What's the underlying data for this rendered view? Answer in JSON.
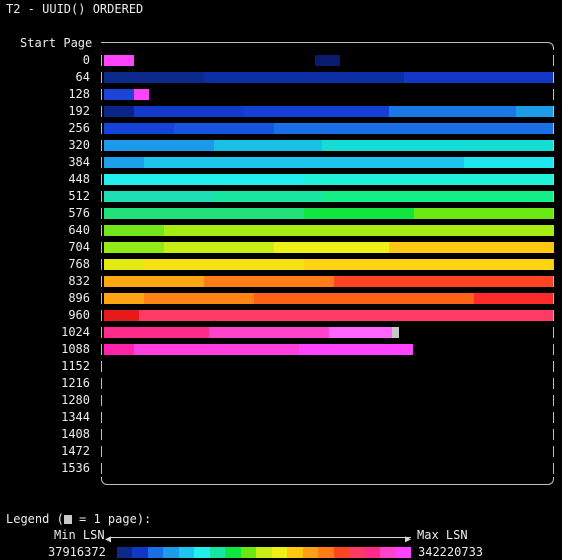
{
  "title": "T2 - UUID() ORDERED",
  "axis_label": "Start Page",
  "rows": [
    {
      "label": "0",
      "cells": [
        [
          "#ff44ff",
          0,
          30
        ],
        [
          "#0a1b6e",
          211,
          236
        ]
      ]
    },
    {
      "label": "64",
      "cells": [
        [
          "#0b2a8c",
          0,
          100
        ],
        [
          "#0d2fa6",
          100,
          300
        ],
        [
          "#1237c7",
          300,
          449
        ]
      ]
    },
    {
      "label": "128",
      "cells": [
        [
          "#1c44d6",
          0,
          30
        ],
        [
          "#ff44ff",
          30,
          45
        ]
      ]
    },
    {
      "label": "192",
      "cells": [
        [
          "#0b2488",
          0,
          30
        ],
        [
          "#123bcb",
          30,
          140
        ],
        [
          "#1540d8",
          140,
          285
        ],
        [
          "#1a78e6",
          285,
          412
        ],
        [
          "#1d9de8",
          412,
          449
        ]
      ]
    },
    {
      "label": "256",
      "cells": [
        [
          "#1343d8",
          0,
          70
        ],
        [
          "#1654e0",
          70,
          170
        ],
        [
          "#1b6fe6",
          170,
          449
        ]
      ]
    },
    {
      "label": "320",
      "cells": [
        [
          "#1a9ae8",
          0,
          110
        ],
        [
          "#18c0e6",
          110,
          218
        ],
        [
          "#14ddd4",
          218,
          449
        ]
      ]
    },
    {
      "label": "384",
      "cells": [
        [
          "#1da0ec",
          0,
          40
        ],
        [
          "#1ec6ee",
          40,
          360
        ],
        [
          "#1ee8ee",
          360,
          449
        ]
      ]
    },
    {
      "label": "448",
      "cells": [
        [
          "#21f0ec",
          0,
          200
        ],
        [
          "#20f2d8",
          200,
          449
        ]
      ]
    },
    {
      "label": "512",
      "cells": [
        [
          "#1cddb4",
          0,
          110
        ],
        [
          "#18e6a0",
          110,
          220
        ],
        [
          "#14ee86",
          220,
          449
        ]
      ]
    },
    {
      "label": "576",
      "cells": [
        [
          "#22e07a",
          0,
          200
        ],
        [
          "#11e640",
          200,
          310
        ],
        [
          "#6ae812",
          310,
          449
        ]
      ]
    },
    {
      "label": "640",
      "cells": [
        [
          "#72e61a",
          0,
          60
        ],
        [
          "#a6ee12",
          60,
          449
        ]
      ]
    },
    {
      "label": "704",
      "cells": [
        [
          "#94ea16",
          0,
          60
        ],
        [
          "#c6ee14",
          60,
          170
        ],
        [
          "#eef016",
          170,
          285
        ],
        [
          "#ffc812",
          285,
          449
        ]
      ]
    },
    {
      "label": "768",
      "cells": [
        [
          "#e2ea10",
          0,
          40
        ],
        [
          "#f6e210",
          40,
          200
        ],
        [
          "#ffd412",
          200,
          449
        ]
      ]
    },
    {
      "label": "832",
      "cells": [
        [
          "#ffa814",
          0,
          100
        ],
        [
          "#ff7c16",
          100,
          230
        ],
        [
          "#ff4424",
          230,
          449
        ]
      ]
    },
    {
      "label": "896",
      "cells": [
        [
          "#ffa414",
          0,
          40
        ],
        [
          "#ff8414",
          40,
          150
        ],
        [
          "#ff6216",
          150,
          370
        ],
        [
          "#ff2a2a",
          370,
          449
        ]
      ]
    },
    {
      "label": "960",
      "cells": [
        [
          "#e61a1a",
          0,
          35
        ],
        [
          "#ff3a64",
          35,
          449
        ]
      ]
    },
    {
      "label": "1024",
      "cells": [
        [
          "#ff2a8a",
          0,
          105
        ],
        [
          "#ff44cc",
          105,
          225
        ],
        [
          "#ff66ff",
          225,
          288
        ],
        [
          "#c8c8c8",
          288,
          295
        ]
      ]
    },
    {
      "label": "1088",
      "cells": [
        [
          "#ff22aa",
          0,
          30
        ],
        [
          "#ff3fe0",
          30,
          195
        ],
        [
          "#ff44ff",
          195,
          309
        ]
      ]
    },
    {
      "label": "1152",
      "cells": []
    },
    {
      "label": "1216",
      "cells": []
    },
    {
      "label": "1280",
      "cells": []
    },
    {
      "label": "1344",
      "cells": []
    },
    {
      "label": "1408",
      "cells": []
    },
    {
      "label": "1472",
      "cells": []
    },
    {
      "label": "1536",
      "cells": []
    }
  ],
  "legend": {
    "title_prefix": "Legend (",
    "title_suffix": " = 1 page):",
    "min_label": "Min LSN",
    "max_label": "Max LSN",
    "min_value": "37916372",
    "max_value": "342220733",
    "gradient_colors": [
      "#0b2a8c",
      "#1237c7",
      "#1a6ee6",
      "#1d9de8",
      "#1ec6ee",
      "#21f0ec",
      "#18e6a0",
      "#11e640",
      "#6ae812",
      "#c6ee14",
      "#eef016",
      "#ffc812",
      "#ffa014",
      "#ff7c16",
      "#ff4424",
      "#ff3a64",
      "#ff2a8a",
      "#ff44cc",
      "#ff44ff"
    ]
  }
}
